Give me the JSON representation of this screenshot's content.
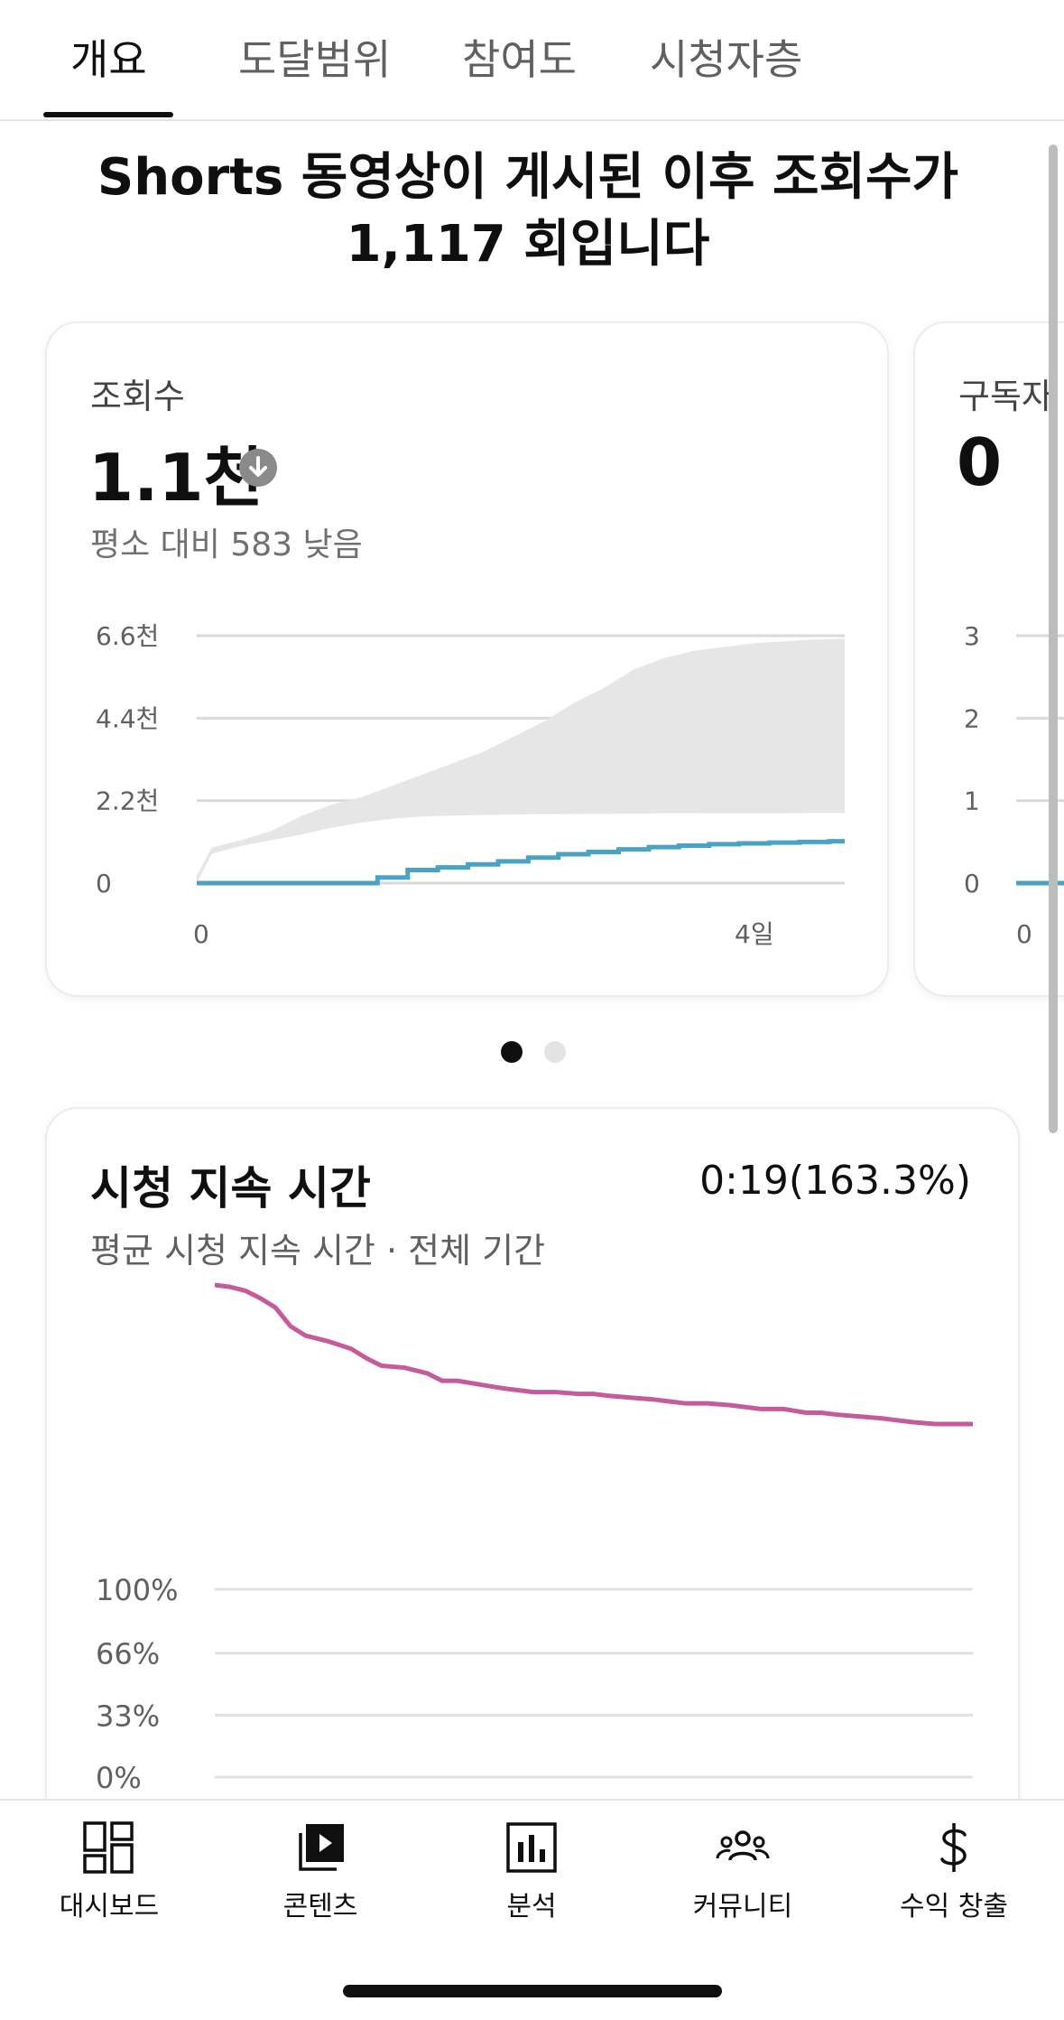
{
  "tabs": [
    {
      "label": "개요",
      "active": true
    },
    {
      "label": "도달범위",
      "active": false
    },
    {
      "label": "참여도",
      "active": false
    },
    {
      "label": "시청자층",
      "active": false
    }
  ],
  "headline": "Shorts 동영상이 게시된 이후 조회수가 1,117 회입니다",
  "views_card": {
    "label": "조회수",
    "value": "1.1천",
    "trend_icon": "arrow-down-circle-icon",
    "comparison": "평소 대비 583 낮음"
  },
  "subs_card": {
    "label": "구독자",
    "value": "0"
  },
  "pager": {
    "total": 2,
    "active_index": 0
  },
  "retention_card": {
    "title": "시청 지속 시간",
    "value": "0:19(163.3%)",
    "subtitle": "평균 시청 지속 시간 · 전체 기간"
  },
  "bottom_nav": [
    {
      "label": "대시보드",
      "icon": "dashboard-icon"
    },
    {
      "label": "콘텐츠",
      "icon": "content-icon"
    },
    {
      "label": "분석",
      "icon": "analytics-icon"
    },
    {
      "label": "커뮤니티",
      "icon": "community-icon"
    },
    {
      "label": "수익 창출",
      "icon": "monetization-icon"
    }
  ],
  "colors": {
    "views_line": "#4aa3c4",
    "typical_band": "#e6e6e6",
    "retention_line": "#c55b9a"
  },
  "chart_data": [
    {
      "type": "area",
      "title": "",
      "x_tick_labels": [
        "0",
        "4일"
      ],
      "y_tick_labels": [
        "0",
        "2.2천",
        "4.4천",
        "6.6천"
      ],
      "xlim": [
        0,
        4.3
      ],
      "ylim": [
        0,
        6600
      ],
      "grid": true,
      "series": [
        {
          "x": [
            0,
            0.1,
            0.3,
            0.5,
            0.7,
            0.9,
            1.1,
            1.3,
            1.5,
            1.7,
            1.9,
            2.1,
            2.3,
            2.5,
            2.7,
            2.9,
            3.1,
            3.3,
            3.5,
            3.7,
            3.9,
            4.1,
            4.3
          ],
          "lower": [
            0,
            780,
            1000,
            1150,
            1300,
            1480,
            1620,
            1720,
            1780,
            1800,
            1820,
            1830,
            1840,
            1845,
            1850,
            1855,
            1860,
            1862,
            1865,
            1866,
            1868,
            1870,
            1870
          ],
          "upper": [
            200,
            950,
            1150,
            1400,
            1800,
            2100,
            2300,
            2600,
            2900,
            3200,
            3500,
            3900,
            4300,
            4800,
            5200,
            5700,
            6000,
            6200,
            6300,
            6400,
            6450,
            6500,
            6520
          ]
        },
        {
          "x": [
            0,
            0.2,
            0.4,
            0.6,
            0.8,
            1.0,
            1.15,
            1.2,
            1.4,
            1.6,
            1.8,
            2.0,
            2.2,
            2.4,
            2.6,
            2.8,
            3.0,
            3.2,
            3.4,
            3.6,
            3.8,
            4.0,
            4.2,
            4.3
          ],
          "y": [
            0,
            0,
            0,
            0,
            0,
            0,
            0,
            150,
            350,
            420,
            500,
            580,
            680,
            770,
            830,
            900,
            960,
            1000,
            1040,
            1060,
            1080,
            1100,
            1117,
            1117
          ]
        }
      ]
    },
    {
      "type": "line",
      "title": "",
      "x_tick_labels": [
        "0"
      ],
      "y_tick_labels": [
        "0",
        "1",
        "2",
        "3"
      ],
      "ylim": [
        0,
        3
      ],
      "grid": true,
      "series": [
        {
          "y": [
            0,
            0
          ]
        }
      ]
    },
    {
      "type": "line",
      "title": "",
      "y_tick_labels": [
        "0%",
        "33%",
        "66%",
        "100%"
      ],
      "ylim": [
        0,
        100
      ],
      "grid": true,
      "series": [
        {
          "x": [
            0,
            2,
            4,
            6,
            8,
            10,
            12,
            15,
            18,
            20,
            22,
            25,
            28,
            30,
            32,
            35,
            38,
            40,
            42,
            45,
            48,
            50,
            52,
            55,
            58,
            60,
            62,
            65,
            68,
            70,
            72,
            75,
            78,
            80,
            82,
            85,
            88,
            90,
            92,
            95,
            98,
            100
          ],
          "y": [
            262,
            261,
            259,
            255,
            250,
            240,
            235,
            232,
            228,
            223,
            219,
            218,
            215,
            211,
            211,
            209,
            207,
            206,
            205,
            205,
            204,
            204,
            203,
            202,
            201,
            200,
            199,
            199,
            198,
            197,
            196,
            196,
            194,
            194,
            193,
            192,
            191,
            190,
            189,
            188,
            188,
            188
          ]
        }
      ]
    }
  ]
}
